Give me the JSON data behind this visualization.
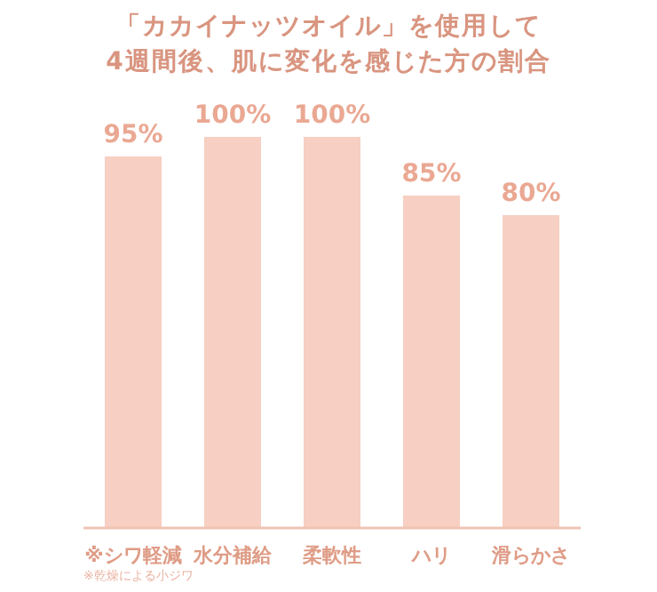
{
  "chart_data": {
    "type": "bar",
    "title": "「カカイナッツオイル」を使用して\n4週間後、肌に変化を感じた方の割合",
    "categories": [
      "※シワ軽減",
      "水分補給",
      "柔軟性",
      "ハリ",
      "滑らかさ"
    ],
    "values": [
      95,
      100,
      100,
      85,
      80
    ],
    "value_labels": [
      "95%",
      "100%",
      "100%",
      "85%",
      "80%"
    ],
    "color": "#f7cfc3",
    "ylim": [
      0,
      100
    ],
    "annotations": [
      "※乾燥による小ジワ"
    ]
  }
}
